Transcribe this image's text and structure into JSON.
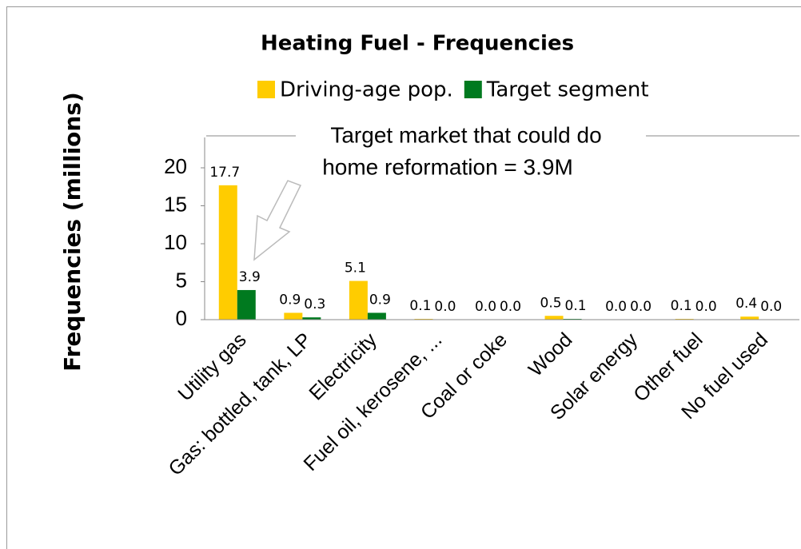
{
  "chart_data": {
    "type": "bar",
    "title": "Heating Fuel - Frequencies",
    "y_label": "Frequencies (millions)",
    "annotation": [
      "Target market that could do",
      "home reformation = 3.9M"
    ],
    "categories": [
      "Utility gas",
      "Gas: bottled, tank, LP",
      "Electricity",
      "Fuel oil, kerosene, ...",
      "Coal or coke",
      "Wood",
      "Solar energy",
      "Other fuel",
      "No fuel used"
    ],
    "series": [
      {
        "name": "Driving-age pop.",
        "color": "#ffcc00",
        "values": [
          17.7,
          0.9,
          5.1,
          0.1,
          0.0,
          0.5,
          0.0,
          0.1,
          0.4
        ],
        "value_labels": [
          "17.7",
          "0.9",
          "5.1",
          "0.1",
          "0.0",
          "0.5",
          "0.0",
          "0.1",
          "0.4"
        ]
      },
      {
        "name": "Target segment",
        "color": "#007a1f",
        "values": [
          3.9,
          0.3,
          0.9,
          0.0,
          0.0,
          0.1,
          0.0,
          0.0,
          0.0
        ],
        "value_labels": [
          "3.9",
          "0.3",
          "0.9",
          "0.0",
          "0.0",
          "0.1",
          "0.0",
          "0.0",
          "0.0"
        ]
      }
    ],
    "ylim": [
      0,
      24
    ],
    "yticks": [
      0,
      5,
      10,
      15,
      20
    ],
    "legend": "top"
  }
}
